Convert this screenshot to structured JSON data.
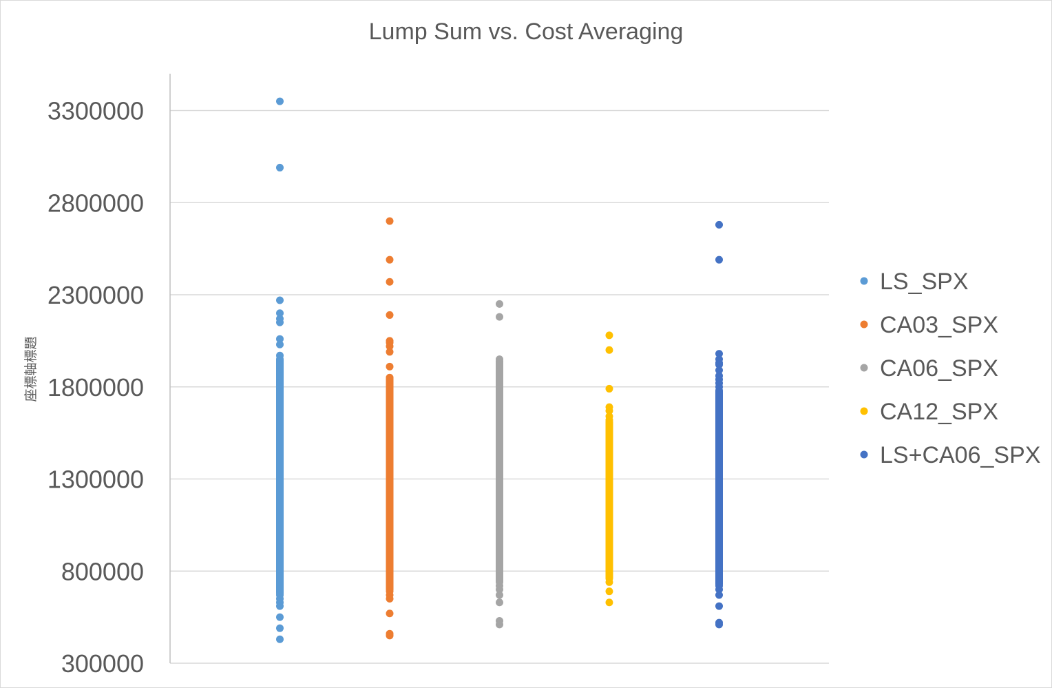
{
  "chart_data": {
    "type": "scatter",
    "title": "Lump Sum vs. Cost Averaging",
    "xlabel": "",
    "ylabel": "座標軸標題",
    "ylim": [
      300000,
      3500000
    ],
    "yticks": [
      300000,
      800000,
      1300000,
      1800000,
      2300000,
      2800000,
      3300000
    ],
    "xlim": [
      0,
      6
    ],
    "grid": true,
    "legend_position": "right",
    "series": [
      {
        "name": "LS_SPX",
        "color": "#5b9bd5",
        "x": 1,
        "band": [
          680000,
          1950000
        ],
        "values": [
          3350000,
          2990000,
          2270000,
          2200000,
          2170000,
          2150000,
          2060000,
          2030000,
          1970000,
          1940000,
          1920000,
          1900000,
          1880000,
          1860000,
          1840000,
          1820000,
          1800000,
          700000,
          670000,
          650000,
          630000,
          610000,
          550000,
          490000,
          430000
        ]
      },
      {
        "name": "CA03_SPX",
        "color": "#ed7d31",
        "x": 2,
        "band": [
          700000,
          1850000
        ],
        "values": [
          2700000,
          2490000,
          2370000,
          2190000,
          2050000,
          2040000,
          2020000,
          1990000,
          1910000,
          1850000,
          1840000,
          690000,
          670000,
          650000,
          570000,
          460000,
          450000
        ]
      },
      {
        "name": "CA06_SPX",
        "color": "#a5a5a5",
        "x": 3,
        "band": [
          740000,
          1940000
        ],
        "values": [
          2250000,
          2180000,
          1950000,
          1920000,
          1900000,
          1880000,
          1860000,
          720000,
          700000,
          670000,
          630000,
          530000,
          510000
        ]
      },
      {
        "name": "CA12_SPX",
        "color": "#ffc000",
        "x": 4,
        "band": [
          760000,
          1610000
        ],
        "values": [
          2080000,
          2000000,
          1790000,
          1690000,
          1670000,
          1640000,
          1620000,
          740000,
          690000,
          630000
        ]
      },
      {
        "name": "LS+CA06_SPX",
        "color": "#4472c4",
        "x": 5,
        "band": [
          730000,
          1780000
        ],
        "values": [
          2680000,
          2490000,
          1980000,
          1950000,
          1930000,
          1920000,
          1890000,
          1860000,
          1840000,
          1820000,
          1800000,
          720000,
          700000,
          670000,
          610000,
          520000,
          510000
        ]
      }
    ]
  }
}
